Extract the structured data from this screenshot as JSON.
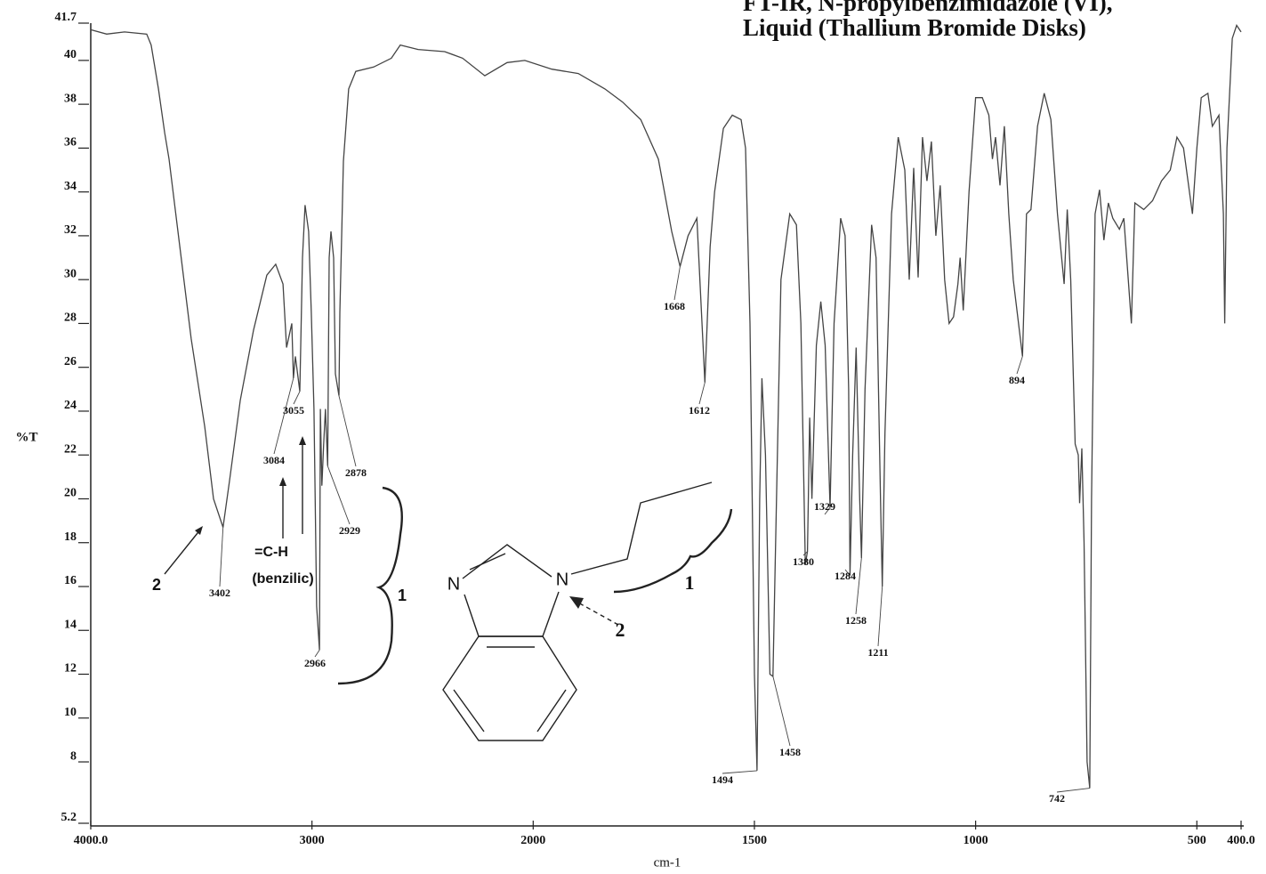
{
  "chart_data": {
    "type": "line",
    "title": [
      "FT-IR, N-propylbenzimidazole (VI),",
      "Liquid (Thallium Bromide Disks)"
    ],
    "x_label": "cm-1",
    "y_label": "%T",
    "xlim": [
      4000,
      400
    ],
    "xscale": {
      "break": 2000,
      "ratio": 2
    },
    "xticks": [
      {
        "value": 4000,
        "label": "4000.0"
      },
      3000,
      2000,
      1500,
      1000,
      500,
      {
        "value": 400,
        "label": "400.0"
      }
    ],
    "ylim": [
      5.2,
      41.7
    ],
    "yticks": [
      5.2,
      8,
      10,
      12,
      14,
      16,
      18,
      20,
      22,
      24,
      26,
      28,
      30,
      32,
      34,
      36,
      38,
      40,
      41.7
    ],
    "color": "#444444",
    "x": [
      4000,
      3928,
      3847,
      3747,
      3727,
      3694,
      3666,
      3646,
      3606,
      3546,
      3485,
      3445,
      3402,
      3373,
      3324,
      3264,
      3204,
      3164,
      3131,
      3115,
      3091,
      3084,
      3075,
      3055,
      3043,
      3031,
      3015,
      3003,
      2991,
      2979,
      2966,
      2962,
      2955,
      2947,
      2939,
      2929,
      2922,
      2914,
      2902,
      2894,
      2878,
      2874,
      2858,
      2834,
      2802,
      2721,
      2641,
      2601,
      2520,
      2400,
      2319,
      2219,
      2118,
      2038,
      1958,
      1898,
      1838,
      1798,
      1757,
      1717,
      1687,
      1668,
      1650,
      1630,
      1612,
      1600,
      1590,
      1570,
      1550,
      1530,
      1520,
      1510,
      1500,
      1494,
      1488,
      1483,
      1475,
      1465,
      1458,
      1450,
      1440,
      1420,
      1405,
      1395,
      1385,
      1380,
      1375,
      1370,
      1360,
      1350,
      1340,
      1329,
      1320,
      1305,
      1295,
      1287,
      1284,
      1278,
      1270,
      1262,
      1258,
      1250,
      1235,
      1225,
      1215,
      1211,
      1205,
      1190,
      1175,
      1160,
      1150,
      1140,
      1130,
      1120,
      1110,
      1100,
      1090,
      1080,
      1070,
      1060,
      1050,
      1040,
      1035,
      1028,
      1015,
      1000,
      985,
      970,
      962,
      955,
      945,
      935,
      925,
      915,
      894,
      885,
      875,
      860,
      845,
      830,
      815,
      800,
      793,
      785,
      775,
      768,
      765,
      760,
      755,
      748,
      742,
      738,
      730,
      720,
      710,
      700,
      690,
      675,
      665,
      655,
      648,
      640,
      620,
      600,
      580,
      560,
      545,
      530,
      520,
      510,
      500,
      490,
      475,
      465,
      450,
      440,
      437,
      432,
      420,
      410,
      400
    ],
    "values": [
      41.4,
      41.2,
      41.3,
      41.2,
      40.7,
      38.7,
      36.7,
      35.5,
      32.2,
      27.3,
      23.3,
      20.0,
      18.7,
      20.8,
      24.5,
      27.7,
      30.2,
      30.7,
      29.8,
      26.9,
      28.0,
      25.5,
      26.5,
      24.9,
      31.0,
      33.4,
      32.2,
      28.5,
      24.1,
      15.1,
      13.1,
      24.1,
      20.6,
      22.5,
      24.1,
      21.5,
      31.0,
      32.2,
      31.0,
      25.7,
      24.7,
      28.5,
      35.4,
      38.7,
      39.5,
      39.7,
      40.1,
      40.7,
      40.5,
      40.4,
      40.1,
      39.3,
      39.9,
      40.0,
      39.6,
      39.4,
      38.7,
      38.1,
      37.3,
      35.5,
      32.2,
      30.6,
      32.0,
      32.8,
      25.3,
      31.5,
      34.0,
      36.9,
      37.5,
      37.3,
      36.0,
      28.0,
      12.0,
      7.6,
      20.0,
      25.5,
      22.0,
      12.0,
      11.9,
      20.0,
      30.0,
      33.0,
      32.5,
      28.0,
      17.0,
      17.6,
      23.7,
      20.0,
      27.0,
      29.0,
      27.0,
      19.6,
      28.0,
      32.8,
      32.0,
      25.0,
      16.5,
      22.0,
      26.9,
      20.0,
      17.3,
      25.0,
      32.5,
      31.0,
      20.0,
      16.0,
      23.0,
      33.0,
      36.5,
      35.0,
      30.0,
      35.1,
      30.1,
      36.5,
      34.5,
      36.3,
      32.0,
      34.3,
      30.0,
      28.0,
      28.3,
      29.8,
      31.0,
      28.6,
      34.0,
      38.3,
      38.3,
      37.5,
      35.5,
      36.5,
      34.3,
      37.0,
      33.0,
      30.0,
      26.5,
      33.0,
      33.2,
      37.0,
      38.5,
      37.3,
      33.0,
      29.8,
      33.2,
      30.0,
      22.5,
      22.0,
      19.8,
      22.3,
      18.0,
      8.0,
      6.8,
      20.0,
      33.0,
      34.1,
      31.8,
      33.5,
      32.8,
      32.3,
      32.8,
      30.0,
      28.0,
      33.5,
      33.2,
      33.6,
      34.5,
      35.0,
      36.5,
      36.0,
      34.5,
      33.0,
      36.0,
      38.3,
      38.5,
      37.0,
      37.5,
      33.0,
      28.0,
      36.0,
      41.0,
      41.6,
      41.3
    ],
    "peak_labels": [
      3402,
      3084,
      3055,
      2966,
      2929,
      2878,
      1668,
      1612,
      1494,
      1458,
      1380,
      1329,
      1284,
      1258,
      1211,
      894,
      742
    ],
    "annotations": [
      "=C-H",
      "(benzilic)",
      "2",
      "1",
      "2",
      "1"
    ],
    "structure": {
      "atoms": [
        "N",
        "N"
      ]
    }
  }
}
